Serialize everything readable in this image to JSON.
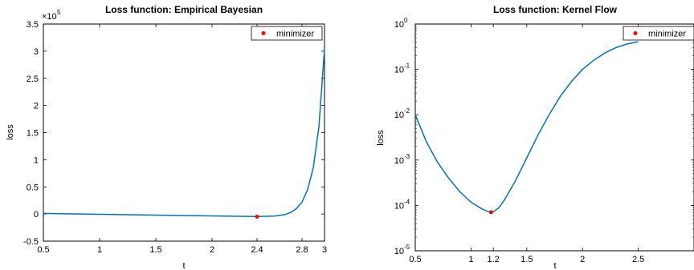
{
  "chart_data": [
    {
      "type": "line",
      "title": "Loss function: Empirical Bayesian",
      "xlabel": "t",
      "ylabel": "loss",
      "xlim": [
        0.5,
        3
      ],
      "ylim": [
        -0.5,
        3.5
      ],
      "y_multiplier_label": "×10",
      "y_multiplier_exponent": "5",
      "x_ticks": [
        0.5,
        1,
        1.5,
        2,
        2.4,
        2.8,
        3
      ],
      "x_tick_labels": [
        "0.5",
        "1",
        "1.5",
        "2",
        "2.4",
        "2.8",
        "3"
      ],
      "y_ticks": [
        -0.5,
        0,
        0.5,
        1,
        1.5,
        2,
        2.5,
        3,
        3.5
      ],
      "y_tick_labels": [
        "-0.5",
        "0",
        "0.5",
        "1",
        "1.5",
        "2",
        "2.5",
        "3",
        "3.5"
      ],
      "series": [
        {
          "color": "#0072BD",
          "x": [
            0.5,
            1.0,
            1.5,
            2.0,
            2.4,
            2.55,
            2.65,
            2.7,
            2.75,
            2.8,
            2.85,
            2.9,
            2.95,
            3.0
          ],
          "y": [
            0.01,
            -0.005,
            -0.02,
            -0.035,
            -0.045,
            -0.04,
            -0.01,
            0.03,
            0.1,
            0.22,
            0.45,
            0.85,
            1.6,
            3.05
          ]
        }
      ],
      "marker": {
        "x": 2.4,
        "y": -0.05,
        "color": "#FF0000"
      },
      "legend": {
        "label": "minimizer",
        "position": "top-right"
      }
    },
    {
      "type": "line",
      "title": "Loss function: Kernel Flow",
      "xlabel": "t",
      "ylabel": "loss",
      "yscale": "log",
      "xlim": [
        0.5,
        3
      ],
      "ylim_exponents": [
        -5,
        0
      ],
      "x_ticks": [
        0.5,
        1,
        1.2,
        1.5,
        2,
        2.5
      ],
      "x_tick_labels": [
        "0.5",
        "1",
        "1.2",
        "1.5",
        "2",
        "2.5"
      ],
      "y_tick_base": "10",
      "y_tick_exponents": [
        "0",
        "-1",
        "-2",
        "-3",
        "-4",
        "-5"
      ],
      "series": [
        {
          "color": "#0072BD",
          "x": [
            0.5,
            0.6,
            0.7,
            0.8,
            0.9,
            1.0,
            1.1,
            1.15,
            1.18,
            1.2,
            1.25,
            1.3,
            1.4,
            1.5,
            1.6,
            1.7,
            1.8,
            1.9,
            2.0,
            2.1,
            2.2,
            2.3,
            2.4,
            2.5
          ],
          "y_log10": [
            -2.0,
            -2.6,
            -3.05,
            -3.4,
            -3.7,
            -3.93,
            -4.08,
            -4.13,
            -4.15,
            -4.14,
            -4.05,
            -3.88,
            -3.45,
            -2.95,
            -2.45,
            -2.0,
            -1.6,
            -1.27,
            -1.0,
            -0.8,
            -0.64,
            -0.52,
            -0.44,
            -0.39
          ]
        }
      ],
      "marker": {
        "x": 1.18,
        "y_log10": -4.15,
        "color": "#FF0000"
      },
      "legend": {
        "label": "minimizer",
        "position": "top-right"
      }
    }
  ]
}
